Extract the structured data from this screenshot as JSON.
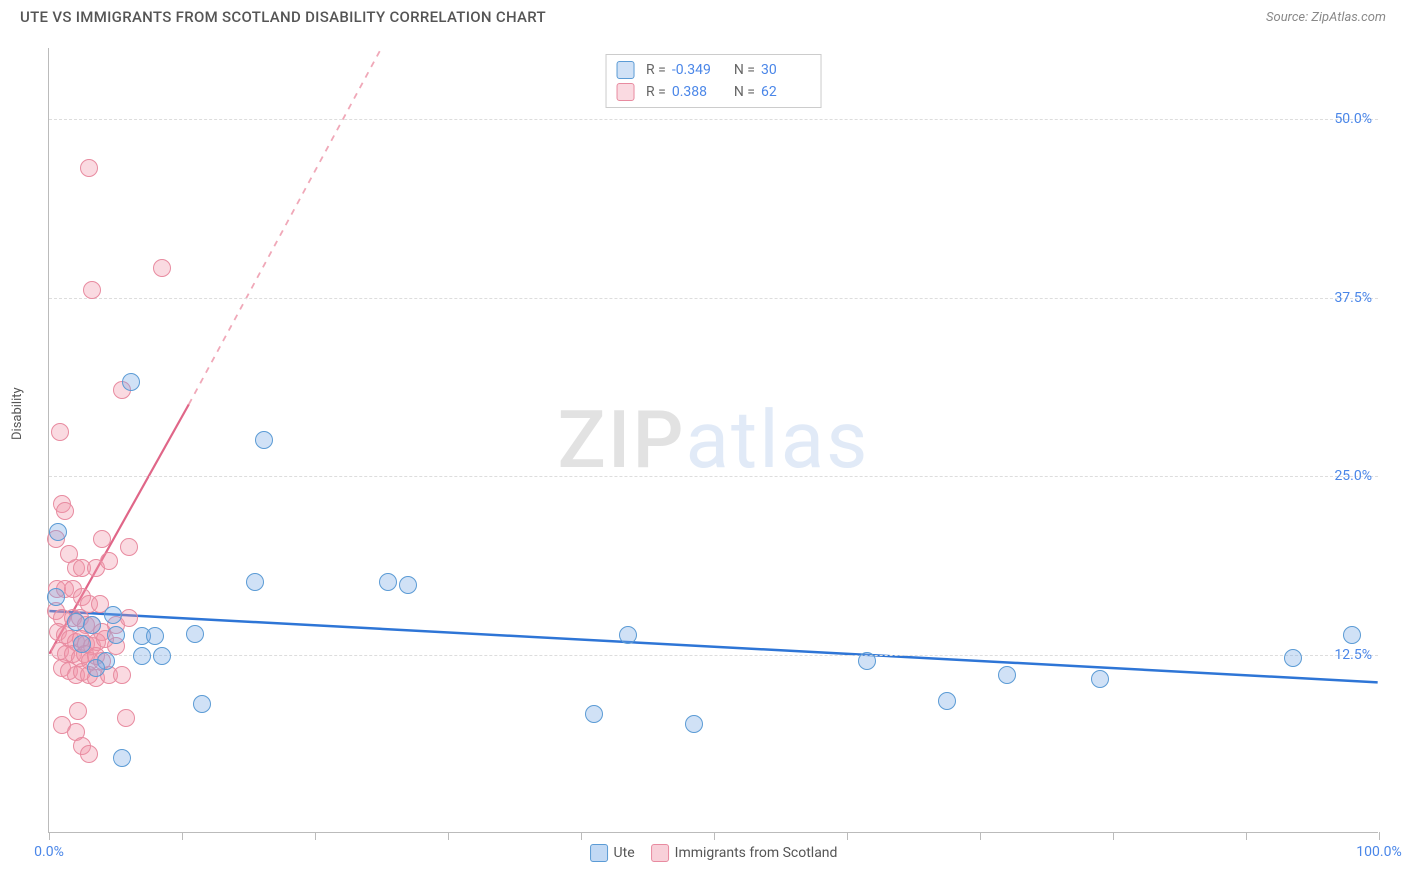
{
  "header": {
    "title": "UTE VS IMMIGRANTS FROM SCOTLAND DISABILITY CORRELATION CHART",
    "source": "Source: ZipAtlas.com"
  },
  "watermark": {
    "zip": "ZIP",
    "atlas": "atlas"
  },
  "chart": {
    "type": "scatter",
    "ylabel": "Disability",
    "xlim": [
      0,
      100
    ],
    "ylim": [
      0,
      55
    ],
    "xticks": [
      0,
      10,
      20,
      30,
      40,
      50,
      60,
      70,
      80,
      90,
      100
    ],
    "xtick_labels": {
      "0": "0.0%",
      "100": "100.0%"
    },
    "yticks": [
      12.5,
      25.0,
      37.5,
      50.0
    ],
    "ytick_labels": [
      "12.5%",
      "25.0%",
      "37.5%",
      "50.0%"
    ],
    "background_color": "#ffffff",
    "grid_color": "#dddddd",
    "axis_color": "#bbbbbb",
    "tick_label_color": "#4a86e8",
    "marker_radius": 9,
    "marker_stroke_width": 1.5,
    "series": [
      {
        "name": "Ute",
        "fill": "rgba(120,170,230,0.35)",
        "stroke": "#5b9bd5",
        "R": "-0.349",
        "N": "30",
        "trend": {
          "x1": 0,
          "y1": 15.5,
          "x2": 100,
          "y2": 10.5,
          "color": "#2e75d6",
          "width": 2.5,
          "dash": ""
        },
        "points": [
          [
            0.7,
            21.0
          ],
          [
            6.2,
            31.5
          ],
          [
            16.2,
            27.5
          ],
          [
            0.5,
            16.5
          ],
          [
            4.8,
            15.2
          ],
          [
            2.0,
            14.7
          ],
          [
            3.2,
            14.5
          ],
          [
            2.5,
            13.2
          ],
          [
            5.0,
            13.8
          ],
          [
            7.0,
            13.7
          ],
          [
            8.0,
            13.7
          ],
          [
            11.0,
            13.9
          ],
          [
            15.5,
            17.5
          ],
          [
            25.5,
            17.5
          ],
          [
            27.0,
            17.3
          ],
          [
            4.3,
            12.0
          ],
          [
            7.0,
            12.3
          ],
          [
            8.5,
            12.3
          ],
          [
            3.5,
            11.5
          ],
          [
            11.5,
            9.0
          ],
          [
            41.0,
            8.3
          ],
          [
            43.5,
            13.8
          ],
          [
            48.5,
            7.6
          ],
          [
            61.5,
            12.0
          ],
          [
            72.0,
            11.0
          ],
          [
            67.5,
            9.2
          ],
          [
            79.0,
            10.7
          ],
          [
            93.5,
            12.2
          ],
          [
            98.0,
            13.8
          ],
          [
            5.5,
            5.2
          ]
        ]
      },
      {
        "name": "Immigrants from Scotland",
        "fill": "rgba(240,150,170,0.35)",
        "stroke": "#e88ba0",
        "R": "0.388",
        "N": "62",
        "trend_solid": {
          "x1": 0,
          "y1": 12.5,
          "x2": 10.5,
          "y2": 30.0,
          "color": "#e06688",
          "width": 2.2
        },
        "trend_dash": {
          "x1": 10.5,
          "y1": 30.0,
          "x2": 25.0,
          "y2": 55.0,
          "color": "#f0a8b8",
          "width": 1.8
        },
        "points": [
          [
            3.0,
            46.5
          ],
          [
            3.2,
            38.0
          ],
          [
            8.5,
            39.5
          ],
          [
            5.5,
            31.0
          ],
          [
            0.8,
            28.0
          ],
          [
            1.0,
            23.0
          ],
          [
            1.2,
            22.5
          ],
          [
            0.5,
            20.5
          ],
          [
            4.0,
            20.5
          ],
          [
            1.5,
            19.5
          ],
          [
            2.0,
            18.5
          ],
          [
            2.5,
            18.5
          ],
          [
            3.5,
            18.5
          ],
          [
            4.5,
            19.0
          ],
          [
            6.0,
            20.0
          ],
          [
            0.6,
            17.0
          ],
          [
            1.2,
            17.0
          ],
          [
            1.8,
            17.0
          ],
          [
            2.5,
            16.5
          ],
          [
            3.0,
            16.0
          ],
          [
            3.8,
            16.0
          ],
          [
            0.5,
            15.5
          ],
          [
            1.0,
            15.0
          ],
          [
            1.8,
            15.0
          ],
          [
            2.3,
            15.0
          ],
          [
            2.8,
            14.5
          ],
          [
            3.2,
            14.5
          ],
          [
            4.0,
            14.0
          ],
          [
            5.0,
            14.5
          ],
          [
            6.0,
            15.0
          ],
          [
            0.7,
            14.0
          ],
          [
            1.2,
            13.8
          ],
          [
            1.6,
            13.5
          ],
          [
            2.0,
            13.3
          ],
          [
            2.4,
            13.5
          ],
          [
            2.8,
            13.2
          ],
          [
            3.2,
            13.0
          ],
          [
            3.6,
            13.3
          ],
          [
            4.2,
            13.5
          ],
          [
            5.0,
            13.0
          ],
          [
            0.8,
            12.7
          ],
          [
            1.3,
            12.5
          ],
          [
            1.8,
            12.5
          ],
          [
            2.3,
            12.2
          ],
          [
            2.7,
            12.5
          ],
          [
            3.1,
            12.0
          ],
          [
            3.5,
            12.3
          ],
          [
            4.0,
            12.0
          ],
          [
            1.0,
            11.5
          ],
          [
            1.5,
            11.3
          ],
          [
            2.0,
            11.0
          ],
          [
            2.5,
            11.2
          ],
          [
            3.0,
            11.0
          ],
          [
            3.5,
            10.8
          ],
          [
            4.5,
            11.0
          ],
          [
            5.5,
            11.0
          ],
          [
            5.8,
            8.0
          ],
          [
            1.0,
            7.5
          ],
          [
            2.0,
            7.0
          ],
          [
            2.5,
            6.0
          ],
          [
            3.0,
            5.5
          ],
          [
            2.2,
            8.5
          ]
        ]
      }
    ]
  },
  "stats_legend": {
    "r_label": "R =",
    "n_label": "N ="
  },
  "bottom_legend": {
    "items": [
      {
        "label": "Ute",
        "fill": "rgba(120,170,230,0.45)",
        "stroke": "#5b9bd5"
      },
      {
        "label": "Immigrants from Scotland",
        "fill": "rgba(240,150,170,0.45)",
        "stroke": "#e88ba0"
      }
    ]
  }
}
